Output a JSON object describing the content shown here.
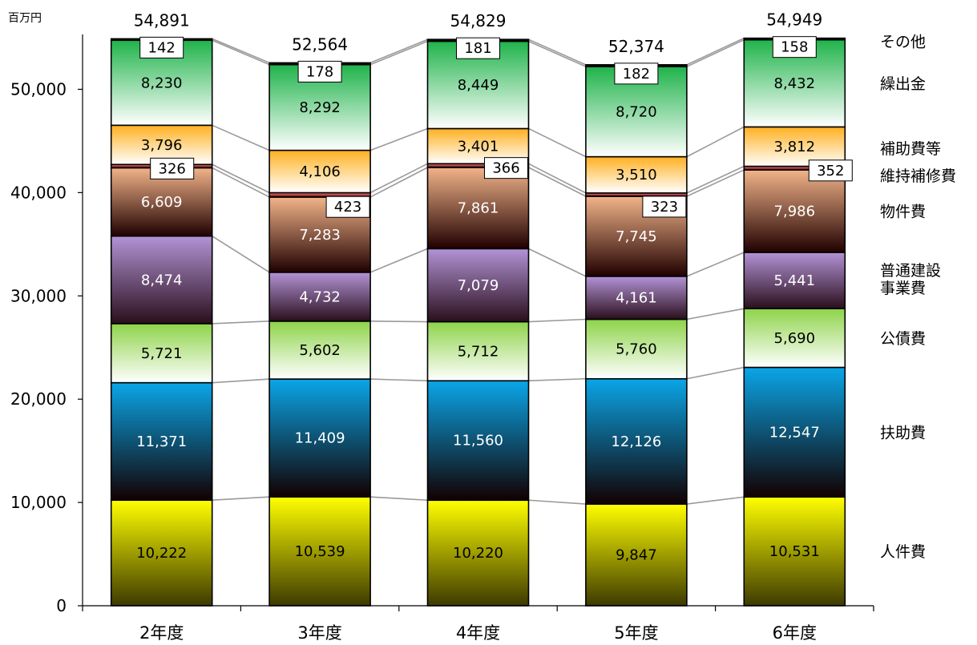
{
  "chart_data": {
    "type": "bar",
    "stacked": true,
    "unit_label": "百万円",
    "categories": [
      "2年度",
      "3年度",
      "4年度",
      "5年度",
      "6年度"
    ],
    "ylim": [
      0,
      55000
    ],
    "yticks": [
      0,
      10000,
      20000,
      30000,
      40000,
      50000
    ],
    "ytick_labels": [
      "0",
      "10,000",
      "20,000",
      "30,000",
      "40,000",
      "50,000"
    ],
    "totals": [
      54891,
      52564,
      54829,
      52374,
      54949
    ],
    "total_labels": [
      "54,891",
      "52,564",
      "54,829",
      "52,374",
      "54,949"
    ],
    "series": [
      {
        "name": "人件費",
        "color_top": "#ffff00",
        "color_bottom": "#3d3a00",
        "label_color": "#000000",
        "label_box": false,
        "values": [
          10222,
          10539,
          10220,
          9847,
          10531
        ],
        "labels": [
          "10,222",
          "10,539",
          "10,220",
          "9,847",
          "10,531"
        ]
      },
      {
        "name": "扶助費",
        "color_top": "#0aa6e8",
        "color_bottom": "#120000",
        "label_color": "#ffffff",
        "label_box": false,
        "values": [
          11371,
          11409,
          11560,
          12126,
          12547
        ],
        "labels": [
          "11,371",
          "11,409",
          "11,560",
          "12,126",
          "12,547"
        ]
      },
      {
        "name": "公債費",
        "color_top": "#8ed34a",
        "color_bottom": "#ffffff",
        "label_color": "#000000",
        "label_box": false,
        "values": [
          5721,
          5602,
          5712,
          5760,
          5690
        ],
        "labels": [
          "5,721",
          "5,602",
          "5,712",
          "5,760",
          "5,690"
        ]
      },
      {
        "name": "普通建設事業費",
        "name_lines": [
          "普通建設",
          "事業費"
        ],
        "color_top": "#b393d6",
        "color_bottom": "#2a0f1c",
        "label_color": "#ffffff",
        "label_box": false,
        "values": [
          8474,
          4732,
          7079,
          4161,
          5441
        ],
        "labels": [
          "8,474",
          "4,732",
          "7,079",
          "4,161",
          "5,441"
        ]
      },
      {
        "name": "物件費",
        "color_top": "#f2b48a",
        "color_bottom": "#200000",
        "label_color": "#ffffff",
        "label_box": false,
        "values": [
          6609,
          7283,
          7861,
          7745,
          7986
        ],
        "labels": [
          "6,609",
          "7,283",
          "7,861",
          "7,745",
          "7,986"
        ]
      },
      {
        "name": "維持補修費",
        "color_top": "#ff8080",
        "color_bottom": "#5a0000",
        "label_color": "#000000",
        "label_box": true,
        "values": [
          326,
          423,
          366,
          323,
          352
        ],
        "labels": [
          "326",
          "423",
          "366",
          "323",
          "352"
        ]
      },
      {
        "name": "補助費等",
        "color_top": "#ffb020",
        "color_bottom": "#ffffff",
        "label_color": "#000000",
        "label_box": false,
        "values": [
          3796,
          4106,
          3401,
          3510,
          3812
        ],
        "labels": [
          "3,796",
          "4,106",
          "3,401",
          "3,510",
          "3,812"
        ]
      },
      {
        "name": "繰出金",
        "color_top": "#1fb34a",
        "color_bottom": "#ffffff",
        "label_color": "#000000",
        "label_box": false,
        "values": [
          8230,
          8292,
          8449,
          8720,
          8432
        ],
        "labels": [
          "8,230",
          "8,292",
          "8,449",
          "8,720",
          "8,432"
        ]
      },
      {
        "name": "その他",
        "color_top": "#000000",
        "color_bottom": "#000000",
        "label_color": "#000000",
        "label_box": true,
        "values": [
          142,
          178,
          181,
          182,
          158
        ],
        "labels": [
          "142",
          "178",
          "181",
          "182",
          "158"
        ]
      }
    ]
  }
}
